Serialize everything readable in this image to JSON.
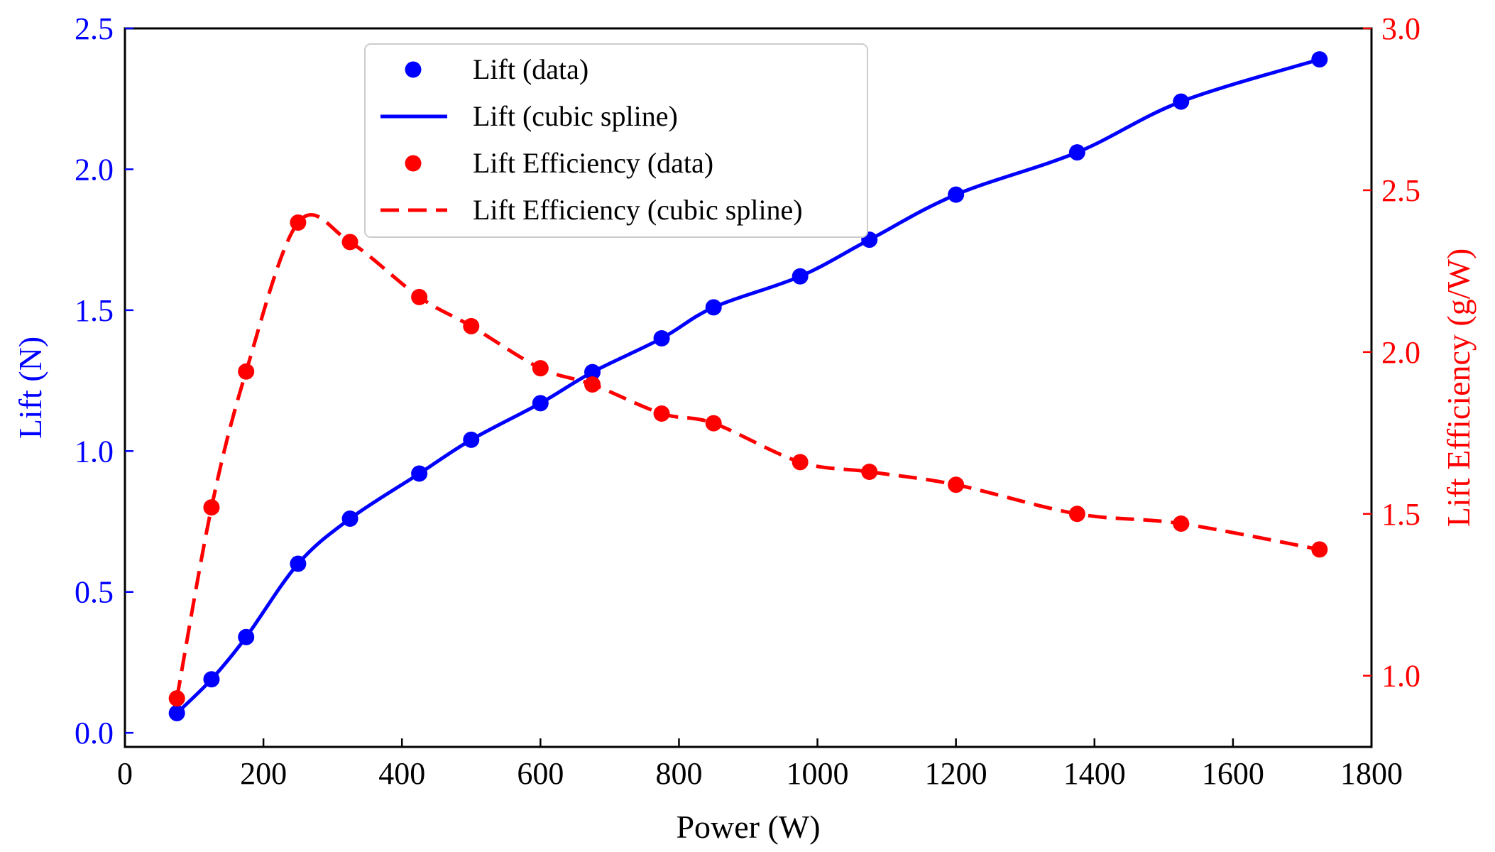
{
  "chart_data": {
    "type": "line",
    "xlabel": "Power (W)",
    "ylabel": "Lift (N)",
    "y2label": "Lift Efficiency (g/W)",
    "xlim": [
      0,
      1800
    ],
    "ylim": [
      -0.05,
      2.5
    ],
    "y2lim": [
      0.78,
      3.0
    ],
    "x_ticks": [
      "0",
      "200",
      "400",
      "600",
      "800",
      "1000",
      "1200",
      "1400",
      "1600",
      "1800"
    ],
    "y_ticks": [
      "0.0",
      "0.5",
      "1.0",
      "1.5",
      "2.0",
      "2.5"
    ],
    "y2_ticks": [
      "1.0",
      "1.5",
      "2.0",
      "2.5",
      "3.0"
    ],
    "legend_position": "upper-center",
    "grid": false,
    "colors": {
      "lift": "#0000ff",
      "efficiency": "#ff0000"
    },
    "series": [
      {
        "name": "Lift (data)",
        "style": "points",
        "axis": "left",
        "x": [
          75,
          125,
          175,
          250,
          325,
          425,
          500,
          600,
          675,
          775,
          850,
          975,
          1075,
          1200,
          1375,
          1525,
          1725
        ],
        "y": [
          0.07,
          0.19,
          0.34,
          0.6,
          0.76,
          0.92,
          1.04,
          1.17,
          1.28,
          1.4,
          1.51,
          1.62,
          1.75,
          1.91,
          2.06,
          2.24,
          2.39
        ]
      },
      {
        "name": "Lift (cubic spline)",
        "style": "solid-line",
        "axis": "left",
        "x": [
          75,
          125,
          175,
          250,
          325,
          425,
          500,
          600,
          675,
          775,
          850,
          975,
          1075,
          1200,
          1375,
          1525,
          1725
        ],
        "y": [
          0.07,
          0.19,
          0.34,
          0.6,
          0.76,
          0.92,
          1.04,
          1.17,
          1.28,
          1.4,
          1.51,
          1.62,
          1.75,
          1.91,
          2.06,
          2.24,
          2.39
        ]
      },
      {
        "name": "Lift Efficiency (data)",
        "style": "points",
        "axis": "right",
        "x": [
          75,
          125,
          175,
          250,
          325,
          425,
          500,
          600,
          675,
          775,
          850,
          975,
          1075,
          1200,
          1375,
          1525,
          1725
        ],
        "y": [
          0.93,
          1.52,
          1.94,
          2.4,
          2.34,
          2.17,
          2.08,
          1.95,
          1.9,
          1.81,
          1.78,
          1.66,
          1.63,
          1.59,
          1.5,
          1.47,
          1.39
        ]
      },
      {
        "name": "Lift Efficiency (cubic spline)",
        "style": "dashed-line",
        "axis": "right",
        "x": [
          75,
          125,
          175,
          250,
          325,
          425,
          500,
          600,
          675,
          775,
          850,
          975,
          1075,
          1200,
          1375,
          1525,
          1725
        ],
        "y": [
          0.93,
          1.52,
          1.94,
          2.4,
          2.34,
          2.17,
          2.08,
          1.95,
          1.9,
          1.81,
          1.78,
          1.66,
          1.63,
          1.59,
          1.5,
          1.47,
          1.39
        ]
      }
    ]
  }
}
